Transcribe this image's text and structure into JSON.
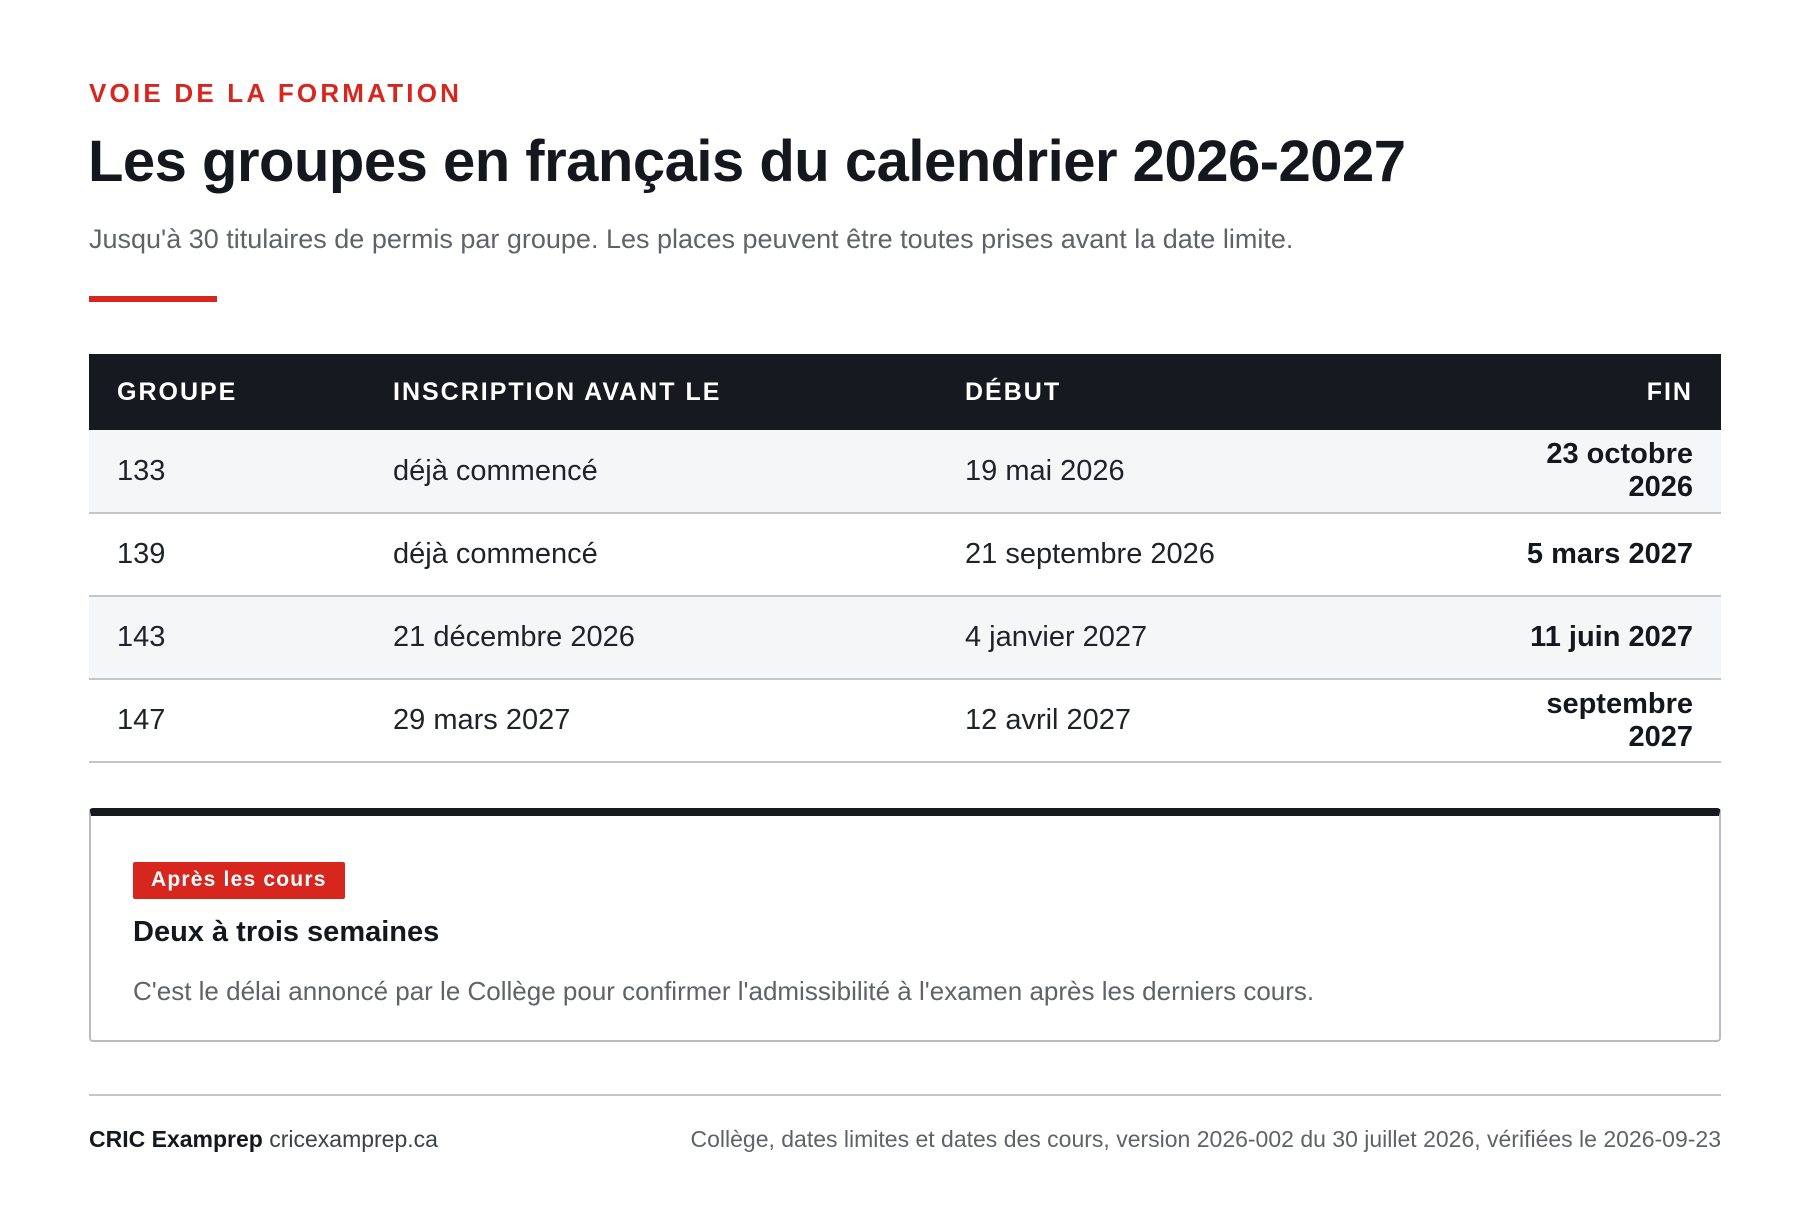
{
  "header": {
    "eyebrow": "Voie de la formation",
    "title": "Les groupes en français du calendrier 2026-2027",
    "subtitle": "Jusqu'à 30 titulaires de permis par groupe. Les places peuvent être toutes prises avant la date limite."
  },
  "table": {
    "columns": {
      "groupe": "Groupe",
      "inscription": "Inscription avant le",
      "debut": "Début",
      "fin": "Fin"
    },
    "rows": [
      {
        "groupe": "133",
        "inscription": "déjà commencé",
        "debut": "19 mai 2026",
        "fin": "23 octobre 2026"
      },
      {
        "groupe": "139",
        "inscription": "déjà commencé",
        "debut": "21 septembre 2026",
        "fin": "5 mars 2027"
      },
      {
        "groupe": "143",
        "inscription": "21 décembre 2026",
        "debut": "4 janvier 2027",
        "fin": "11 juin 2027"
      },
      {
        "groupe": "147",
        "inscription": "29 mars 2027",
        "debut": "12 avril 2027",
        "fin": "septembre 2027"
      }
    ]
  },
  "note": {
    "badge": "Après les cours",
    "heading": "Deux à trois semaines",
    "text": "C'est le délai annoncé par le Collège pour confirmer l'admissibilité à l'examen après les derniers cours."
  },
  "footer": {
    "brand": "CRIC Examprep",
    "site": "cricexamprep.ca",
    "source": "Collège, dates limites et dates des cours, version 2026-002 du 30 juillet 2026, vérifiées le 2026-09-23"
  },
  "colors": {
    "accent": "#d7261e",
    "dark": "#161a20",
    "muted": "#5f6368"
  }
}
